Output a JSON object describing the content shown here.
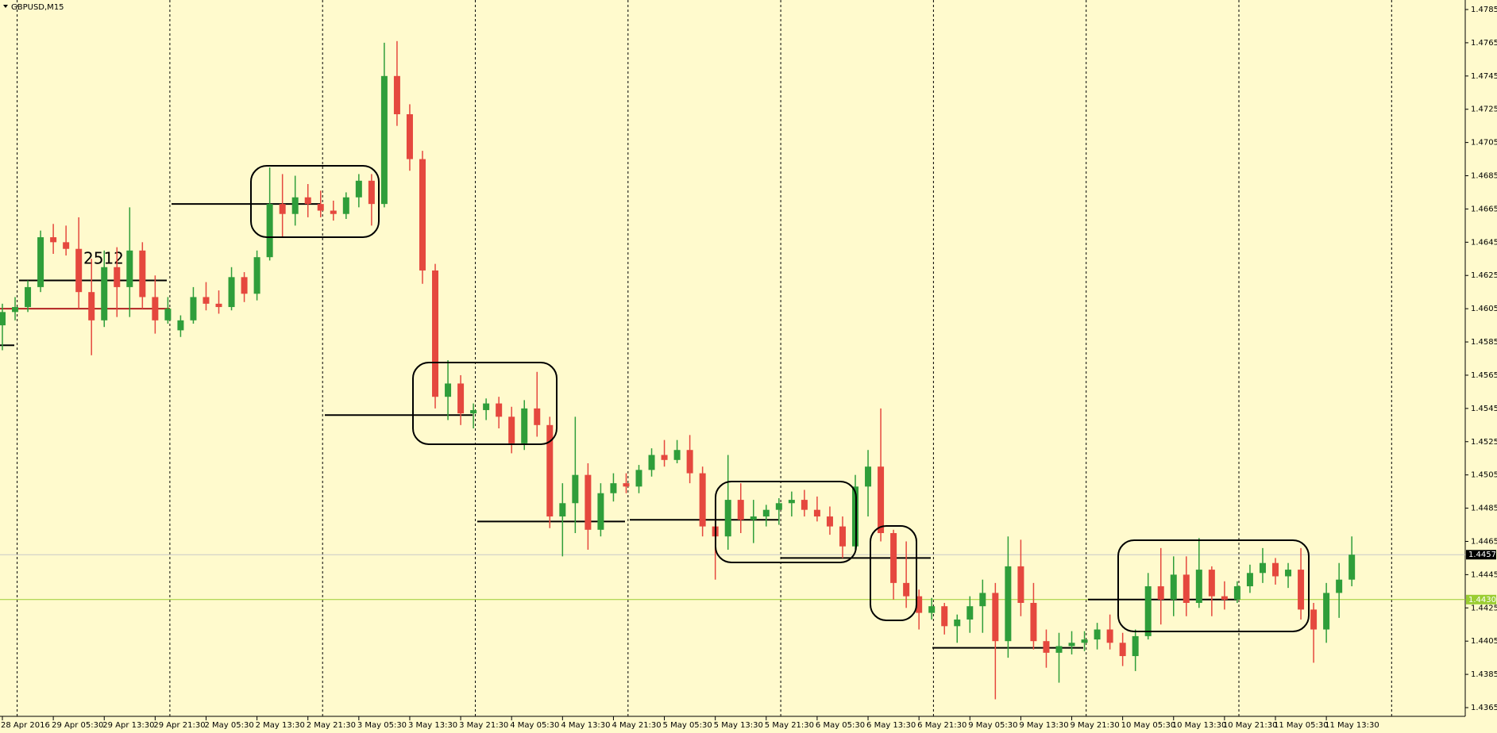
{
  "chart_data": {
    "type": "candlestick",
    "title": "GBPUSD,M15",
    "annotation": "2512",
    "categories": [
      "28 Apr 2016",
      null,
      null,
      null,
      "29 Apr 05:30",
      null,
      null,
      null,
      "29 Apr 13:30",
      null,
      null,
      null,
      "29 Apr 21:30",
      null,
      null,
      null,
      "2 May 05:30",
      null,
      null,
      null,
      "2 May 13:30",
      null,
      null,
      null,
      "2 May 21:30",
      null,
      null,
      null,
      "3 May 05:30",
      null,
      null,
      null,
      "3 May 13:30",
      null,
      null,
      null,
      "3 May 21:30",
      null,
      null,
      null,
      "4 May 05:30",
      null,
      null,
      null,
      "4 May 13:30",
      null,
      null,
      null,
      "4 May 21:30",
      null,
      null,
      null,
      "5 May 05:30",
      null,
      null,
      null,
      "5 May 13:30",
      null,
      null,
      null,
      "5 May 21:30",
      null,
      null,
      null,
      "6 May 05:30",
      null,
      null,
      null,
      "6 May 13:30",
      null,
      null,
      null,
      "6 May 21:30",
      null,
      null,
      null,
      "9 May 05:30",
      null,
      null,
      null,
      "9 May 13:30",
      null,
      null,
      null,
      "9 May 21:30",
      null,
      null,
      null,
      "10 May 05:30",
      null,
      null,
      null,
      "10 May 13:30",
      null,
      null,
      null,
      "10 May 21:30",
      null,
      null,
      null,
      "11 May 05:30",
      null,
      null,
      null,
      "11 May 13:30",
      null,
      null
    ],
    "open": [
      1.4595,
      1.4603,
      1.4606,
      1.4618,
      1.4648,
      1.4645,
      1.4641,
      1.4615,
      1.4598,
      1.463,
      1.4618,
      1.464,
      1.4612,
      1.4598,
      1.4592,
      1.4598,
      1.4612,
      1.4608,
      1.4606,
      1.4624,
      1.4614,
      1.4636,
      1.4668,
      1.4662,
      1.4672,
      1.4668,
      1.4664,
      1.4662,
      1.4672,
      1.4682,
      1.4668,
      1.4745,
      1.4722,
      1.4695,
      1.4628,
      1.4552,
      1.456,
      1.4542,
      1.4544,
      1.4548,
      1.454,
      1.4524,
      1.4545,
      1.4535,
      1.448,
      1.4488,
      1.4505,
      1.4472,
      1.4494,
      1.45,
      1.4498,
      1.4508,
      1.4517,
      1.4514,
      1.452,
      1.4506,
      1.4474,
      1.4468,
      1.449,
      1.4478,
      1.448,
      1.4484,
      1.4488,
      1.449,
      1.4484,
      1.448,
      1.4474,
      1.4462,
      1.4498,
      1.451,
      1.447,
      1.444,
      1.4432,
      1.4422,
      1.4426,
      1.4414,
      1.4418,
      1.4426,
      1.4434,
      1.4405,
      1.445,
      1.4428,
      1.4405,
      1.4398,
      1.4402,
      1.4404,
      1.4406,
      1.4412,
      1.4404,
      1.4396,
      1.4408,
      1.4438,
      1.443,
      1.4445,
      1.4428,
      1.4448,
      1.4432,
      1.443,
      1.4438,
      1.4446,
      1.4452,
      1.4444,
      1.4448,
      1.4424,
      1.4412,
      1.4434,
      1.4442
    ],
    "high": [
      1.4608,
      1.4612,
      1.4622,
      1.4652,
      1.4656,
      1.4655,
      1.466,
      1.4635,
      1.464,
      1.4642,
      1.4666,
      1.4645,
      1.4625,
      1.4612,
      1.4601,
      1.4618,
      1.4621,
      1.4616,
      1.463,
      1.4627,
      1.464,
      1.469,
      1.4686,
      1.4685,
      1.468,
      1.4676,
      1.467,
      1.4675,
      1.4686,
      1.4686,
      1.4765,
      1.4766,
      1.4728,
      1.47,
      1.4632,
      1.4574,
      1.4565,
      1.4548,
      1.4551,
      1.4552,
      1.4546,
      1.455,
      1.4567,
      1.454,
      1.45,
      1.454,
      1.4512,
      1.45,
      1.4506,
      1.4506,
      1.4511,
      1.4521,
      1.4526,
      1.4526,
      1.4529,
      1.451,
      1.449,
      1.4517,
      1.45,
      1.449,
      1.4487,
      1.4491,
      1.4495,
      1.4496,
      1.4492,
      1.4486,
      1.448,
      1.4505,
      1.452,
      1.4545,
      1.4472,
      1.4465,
      1.4436,
      1.4431,
      1.4428,
      1.4421,
      1.4432,
      1.4442,
      1.444,
      1.4468,
      1.4466,
      1.444,
      1.4412,
      1.441,
      1.4411,
      1.4411,
      1.4416,
      1.4421,
      1.441,
      1.4412,
      1.4446,
      1.4461,
      1.4456,
      1.4456,
      1.4467,
      1.445,
      1.4441,
      1.4441,
      1.4451,
      1.4461,
      1.4455,
      1.4452,
      1.4461,
      1.4428,
      1.444,
      1.4452,
      1.4468
    ],
    "low": [
      1.458,
      1.4598,
      1.4603,
      1.4615,
      1.4638,
      1.4637,
      1.4605,
      1.4577,
      1.4594,
      1.46,
      1.46,
      1.4605,
      1.459,
      1.4596,
      1.4588,
      1.4596,
      1.4604,
      1.4602,
      1.4604,
      1.4609,
      1.461,
      1.4634,
      1.4648,
      1.4655,
      1.466,
      1.466,
      1.4658,
      1.4659,
      1.4666,
      1.4655,
      1.4666,
      1.4715,
      1.4688,
      1.462,
      1.4545,
      1.4538,
      1.4535,
      1.4533,
      1.4538,
      1.4533,
      1.4518,
      1.452,
      1.4528,
      1.4473,
      1.4456,
      1.447,
      1.446,
      1.4468,
      1.4489,
      1.4494,
      1.4494,
      1.4504,
      1.451,
      1.4512,
      1.45,
      1.4468,
      1.4442,
      1.446,
      1.447,
      1.4464,
      1.4474,
      1.4475,
      1.448,
      1.448,
      1.4477,
      1.4469,
      1.4455,
      1.446,
      1.448,
      1.4465,
      1.443,
      1.4425,
      1.4412,
      1.4418,
      1.4409,
      1.4404,
      1.441,
      1.441,
      1.437,
      1.4395,
      1.442,
      1.44,
      1.4389,
      1.438,
      1.4397,
      1.4399,
      1.44,
      1.44,
      1.439,
      1.4387,
      1.4406,
      1.4415,
      1.442,
      1.442,
      1.4425,
      1.442,
      1.4424,
      1.4428,
      1.4434,
      1.444,
      1.4439,
      1.4437,
      1.4418,
      1.4392,
      1.4404,
      1.4419,
      1.4438
    ],
    "close": [
      1.4603,
      1.4606,
      1.4618,
      1.4648,
      1.4645,
      1.4641,
      1.4615,
      1.4598,
      1.463,
      1.4618,
      1.464,
      1.4612,
      1.4598,
      1.4605,
      1.4598,
      1.4612,
      1.4608,
      1.4606,
      1.4624,
      1.4614,
      1.4636,
      1.4668,
      1.4662,
      1.4672,
      1.4668,
      1.4664,
      1.4662,
      1.4672,
      1.4682,
      1.4668,
      1.4745,
      1.4722,
      1.4695,
      1.4628,
      1.4552,
      1.456,
      1.4542,
      1.4544,
      1.4548,
      1.454,
      1.4524,
      1.4545,
      1.4535,
      1.448,
      1.4488,
      1.4505,
      1.4472,
      1.4494,
      1.45,
      1.4498,
      1.4508,
      1.4517,
      1.4514,
      1.452,
      1.4506,
      1.4474,
      1.4468,
      1.449,
      1.4478,
      1.448,
      1.4484,
      1.4488,
      1.449,
      1.4484,
      1.448,
      1.4474,
      1.4462,
      1.4498,
      1.451,
      1.447,
      1.444,
      1.4432,
      1.4422,
      1.4426,
      1.4414,
      1.4418,
      1.4426,
      1.4434,
      1.4405,
      1.445,
      1.4428,
      1.4405,
      1.4398,
      1.4402,
      1.4404,
      1.4406,
      1.4412,
      1.4404,
      1.4396,
      1.4408,
      1.4438,
      1.443,
      1.4445,
      1.4428,
      1.4448,
      1.4432,
      1.443,
      1.4438,
      1.4446,
      1.4452,
      1.4444,
      1.4448,
      1.4424,
      1.4412,
      1.4434,
      1.4442,
      1.4457
    ],
    "up_color": "#2f9e3a",
    "down_color": "#e5483e",
    "ylim": [
      1.4365,
      1.4785
    ],
    "yticks": [
      1.4365,
      1.4385,
      1.4405,
      1.4425,
      1.4445,
      1.4465,
      1.4485,
      1.4505,
      1.4525,
      1.4545,
      1.4565,
      1.4585,
      1.4605,
      1.4625,
      1.4645,
      1.4665,
      1.4685,
      1.4705,
      1.4725,
      1.4745,
      1.4765,
      1.4785
    ],
    "levels": [
      {
        "value": 1.4622,
        "color": "#000000"
      },
      {
        "value": 1.4583,
        "color": "#000000"
      },
      {
        "value": 1.4605,
        "color": "#b22222"
      },
      {
        "value": 1.4668,
        "color": "#000000"
      },
      {
        "value": 1.4541,
        "color": "#000000"
      },
      {
        "value": 1.4477,
        "color": "#000000"
      },
      {
        "value": 1.4478,
        "color": "#000000"
      },
      {
        "value": 1.4455,
        "color": "#000000"
      },
      {
        "value": 1.4401,
        "color": "#000000"
      },
      {
        "value": 1.443,
        "color": "#000000"
      }
    ],
    "price_lines": [
      {
        "value": 1.4457,
        "label": "1.4457",
        "color": "#c8c8c8",
        "box": "#000000",
        "text": "#ffffff"
      },
      {
        "value": 1.443,
        "label": "1.4430",
        "color": "#9acd32",
        "box": "#9acd32",
        "text": "#ffffff"
      }
    ]
  }
}
